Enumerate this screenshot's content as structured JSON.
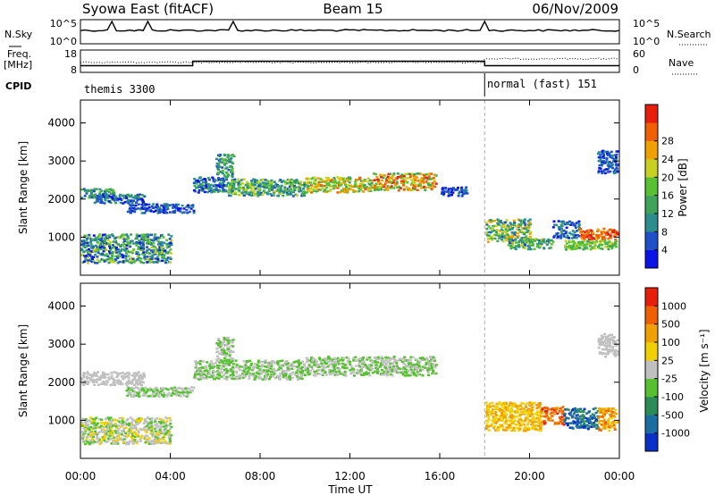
{
  "header": {
    "station": "Syowa East (fitACF)",
    "beam": "Beam 15",
    "date": "06/Nov/2009"
  },
  "strip": {
    "nsky_label": "N.Sky",
    "nsky_ticks": [
      "10^5",
      "10^0"
    ],
    "nsearch_label": "N.Search",
    "nsearch_ticks": [
      "10^5",
      "10^0"
    ],
    "freq_label_1": "Freq.",
    "freq_label_2": "[MHz]",
    "freq_ticks": [
      "18",
      "8"
    ],
    "nave_label": "Nave",
    "nave_ticks": [
      "60",
      "0"
    ],
    "cpid_label": "CPID",
    "cpid_segments": [
      {
        "name": "themis 3300",
        "start_hour": 0,
        "end_hour": 18
      },
      {
        "name": "normal (fast) 151",
        "start_hour": 18,
        "end_hour": 24
      }
    ],
    "freq_steps": [
      {
        "start_hour": 0,
        "end_hour": 5,
        "mhz": 11
      },
      {
        "start_hour": 5,
        "end_hour": 18,
        "mhz": 13
      },
      {
        "start_hour": 18,
        "end_hour": 24,
        "mhz": 11
      }
    ]
  },
  "chart_data": [
    {
      "type": "heatmap",
      "name": "Power",
      "ylabel": "Slant Range [km]",
      "xlim": [
        0,
        24
      ],
      "ylim": [
        0,
        4600
      ],
      "yticks": [
        "1000",
        "2000",
        "3000",
        "4000"
      ],
      "colorbar": {
        "label": "Power [dB]",
        "ticks": [
          "4",
          "8",
          "12",
          "16",
          "20",
          "24",
          "28"
        ],
        "colors": [
          "#0a14e6",
          "#1f50c8",
          "#2b8d8d",
          "#3fa35a",
          "#58c032",
          "#c8d020",
          "#f0a000",
          "#f06000",
          "#e61e0a"
        ]
      },
      "bands": [
        {
          "t0": 0,
          "t1": 1.5,
          "r0": 2050,
          "r1": 2300,
          "v0": 1,
          "v1": 4
        },
        {
          "t0": 0.5,
          "t1": 2.8,
          "r0": 1900,
          "r1": 2150,
          "v0": 0,
          "v1": 3
        },
        {
          "t0": 2,
          "t1": 5,
          "r0": 1650,
          "r1": 1900,
          "v0": 0,
          "v1": 2
        },
        {
          "t0": 5,
          "t1": 6.5,
          "r0": 2200,
          "r1": 2600,
          "v0": 0,
          "v1": 3
        },
        {
          "t0": 6,
          "t1": 6.8,
          "r0": 2600,
          "r1": 3200,
          "v0": 1,
          "v1": 4
        },
        {
          "t0": 6.5,
          "t1": 10,
          "r0": 2100,
          "r1": 2550,
          "v0": 1,
          "v1": 5
        },
        {
          "t0": 10,
          "t1": 13,
          "r0": 2200,
          "r1": 2600,
          "v0": 3,
          "v1": 7
        },
        {
          "t0": 13,
          "t1": 15.8,
          "r0": 2250,
          "r1": 2700,
          "v0": 3,
          "v1": 8
        },
        {
          "t0": 16,
          "t1": 17.2,
          "r0": 2100,
          "r1": 2350,
          "v0": 0,
          "v1": 2
        },
        {
          "t0": 18,
          "t1": 20,
          "r0": 900,
          "r1": 1500,
          "v0": 1,
          "v1": 6
        },
        {
          "t0": 19,
          "t1": 21,
          "r0": 700,
          "r1": 1000,
          "v0": 1,
          "v1": 5
        },
        {
          "t0": 21,
          "t1": 22.2,
          "r0": 1000,
          "r1": 1450,
          "v0": 0,
          "v1": 3
        },
        {
          "t0": 22.2,
          "t1": 24,
          "r0": 950,
          "r1": 1250,
          "v0": 6,
          "v1": 8
        },
        {
          "t0": 21.5,
          "t1": 24,
          "r0": 700,
          "r1": 950,
          "v0": 3,
          "v1": 5
        },
        {
          "t0": 23,
          "t1": 24,
          "r0": 2700,
          "r1": 3300,
          "v0": 0,
          "v1": 2
        },
        {
          "t0": 0,
          "t1": 4,
          "r0": 350,
          "r1": 1100,
          "v0": 0,
          "v1": 5
        }
      ]
    },
    {
      "type": "heatmap",
      "name": "Velocity",
      "ylabel": "Slant Range [km]",
      "xlabel": "Time UT",
      "xlim": [
        0,
        24
      ],
      "ylim": [
        0,
        4600
      ],
      "yticks": [
        "1000",
        "2000",
        "3000",
        "4000"
      ],
      "xticks": [
        "00:00",
        "04:00",
        "08:00",
        "12:00",
        "16:00",
        "20:00",
        "00:00"
      ],
      "colorbar": {
        "label": "Velocity [m s⁻¹]",
        "ticks": [
          "1000",
          "500",
          "100",
          "25",
          "-25",
          "-100",
          "-500",
          "-1000"
        ],
        "colors": [
          "#0a30c8",
          "#1a6ea0",
          "#2c8c58",
          "#56c030",
          "#c0c0c0",
          "#f0d000",
          "#f0a000",
          "#f06000",
          "#e61e0a"
        ]
      },
      "bands": [
        {
          "t0": 0,
          "t1": 2.8,
          "r0": 1950,
          "r1": 2300,
          "v0": 4,
          "v1": 4
        },
        {
          "t0": 2,
          "t1": 5,
          "r0": 1650,
          "r1": 1900,
          "v0": 3,
          "v1": 4
        },
        {
          "t0": 5,
          "t1": 10,
          "r0": 2100,
          "r1": 2600,
          "v0": 3,
          "v1": 4
        },
        {
          "t0": 6,
          "t1": 6.8,
          "r0": 2600,
          "r1": 3200,
          "v0": 3,
          "v1": 4
        },
        {
          "t0": 10,
          "t1": 15.8,
          "r0": 2200,
          "r1": 2700,
          "v0": 3,
          "v1": 4
        },
        {
          "t0": 18,
          "t1": 20.5,
          "r0": 750,
          "r1": 1500,
          "v0": 5,
          "v1": 6
        },
        {
          "t0": 20.5,
          "t1": 21.5,
          "r0": 900,
          "r1": 1400,
          "v0": 6,
          "v1": 8
        },
        {
          "t0": 21.5,
          "t1": 23,
          "r0": 800,
          "r1": 1350,
          "v0": 0,
          "v1": 2
        },
        {
          "t0": 23,
          "t1": 24,
          "r0": 750,
          "r1": 1350,
          "v0": 5,
          "v1": 7
        },
        {
          "t0": 23,
          "t1": 24,
          "r0": 2700,
          "r1": 3300,
          "v0": 4,
          "v1": 4
        },
        {
          "t0": 0,
          "t1": 4,
          "r0": 400,
          "r1": 1100,
          "v0": 3,
          "v1": 5
        }
      ]
    }
  ]
}
